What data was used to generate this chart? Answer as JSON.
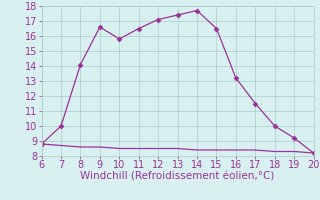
{
  "xlabel": "Windchill (Refroidissement éolien,°C)",
  "curve1_x": [
    6,
    7,
    8,
    9,
    10,
    11,
    12,
    13,
    14,
    15,
    16,
    17,
    18,
    19,
    20
  ],
  "curve1_y": [
    8.8,
    10.0,
    14.1,
    16.6,
    15.8,
    16.5,
    17.1,
    17.4,
    17.7,
    16.5,
    13.2,
    11.5,
    10.0,
    9.2,
    8.2
  ],
  "curve2_x": [
    6,
    7,
    8,
    9,
    10,
    11,
    12,
    13,
    14,
    15,
    16,
    17,
    18,
    19,
    20
  ],
  "curve2_y": [
    8.8,
    8.7,
    8.6,
    8.6,
    8.5,
    8.5,
    8.5,
    8.5,
    8.4,
    8.4,
    8.4,
    8.4,
    8.3,
    8.3,
    8.2
  ],
  "line_color": "#993399",
  "bg_color": "#d8f0f0",
  "grid_color": "#aacccc",
  "text_color": "#993399",
  "xlim": [
    6,
    20
  ],
  "ylim": [
    8,
    18
  ],
  "xticks": [
    6,
    7,
    8,
    9,
    10,
    11,
    12,
    13,
    14,
    15,
    16,
    17,
    18,
    19,
    20
  ],
  "yticks": [
    8,
    9,
    10,
    11,
    12,
    13,
    14,
    15,
    16,
    17,
    18
  ],
  "marker": "D",
  "markersize": 2.5,
  "tick_fontsize": 7,
  "xlabel_fontsize": 7.5,
  "linewidth": 0.9
}
